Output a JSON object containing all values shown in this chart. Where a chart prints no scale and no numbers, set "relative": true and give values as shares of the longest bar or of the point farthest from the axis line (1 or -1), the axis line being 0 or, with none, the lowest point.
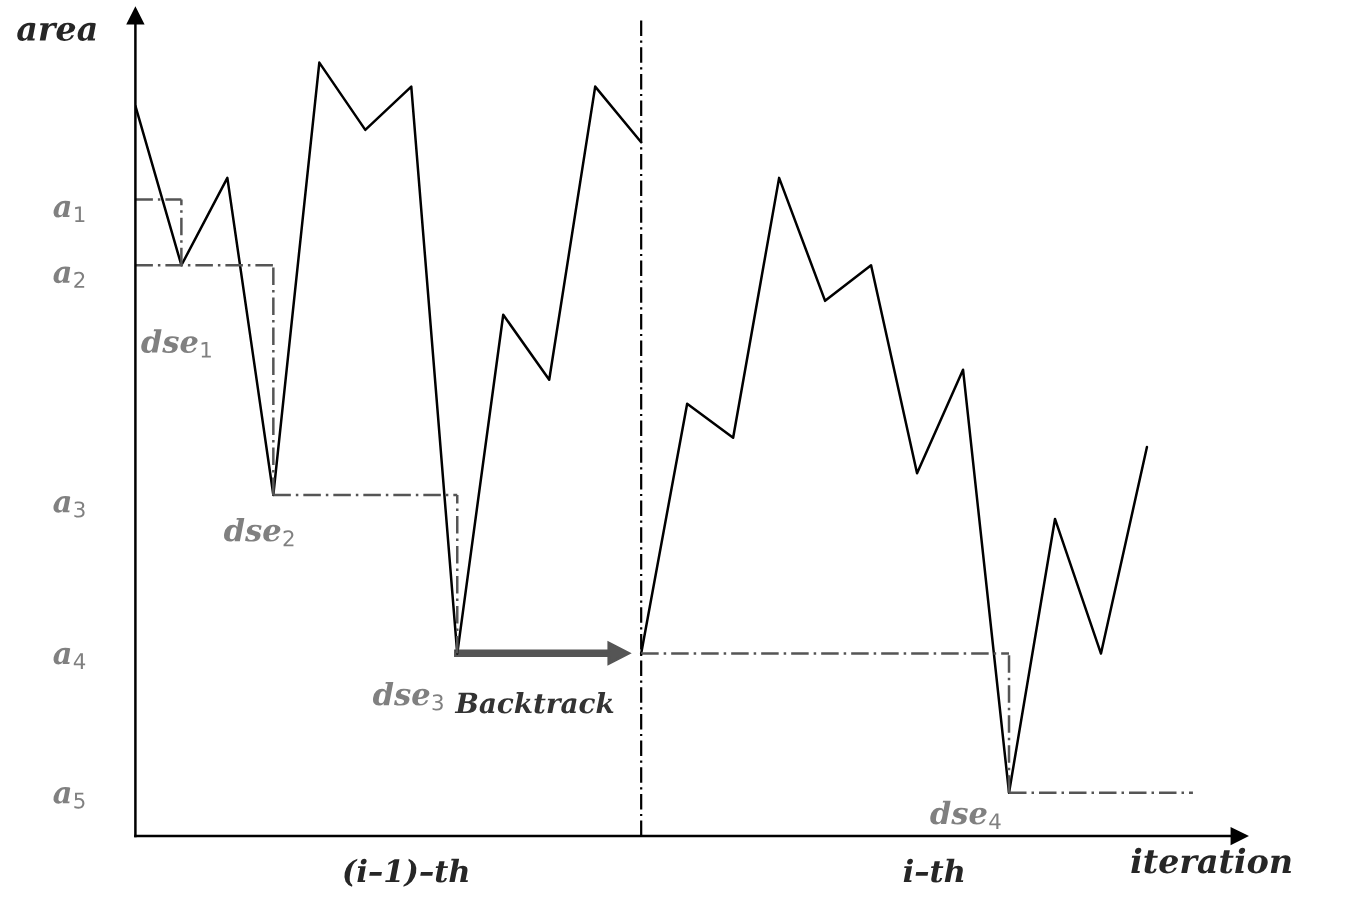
{
  "chart_data": {
    "type": "line",
    "relative": true,
    "xlabel": "iteration",
    "ylabel": "area",
    "categories": [
      null,
      null,
      null,
      null,
      null,
      null,
      null,
      null,
      null,
      null,
      null,
      null,
      null,
      null,
      null,
      null,
      null,
      null,
      null,
      null,
      null,
      null,
      null,
      null,
      null
    ],
    "series": [
      {
        "color": "#000000",
        "values": [
          0.944,
          0.738,
          0.851,
          0.441,
          1,
          0.913,
          0.969,
          0.236,
          0.674,
          0.59,
          0.969,
          0.897,
          null,
          null,
          null,
          null,
          null,
          null,
          null,
          null,
          null,
          null,
          null,
          null,
          null
        ]
      },
      {
        "color": "#000000",
        "values": [
          null,
          null,
          null,
          null,
          null,
          null,
          null,
          null,
          null,
          null,
          null,
          0.236,
          0.559,
          0.515,
          0.851,
          0.692,
          0.738,
          0.469,
          0.603,
          0.056,
          0.41,
          0.236,
          0.503,
          null,
          null
        ]
      },
      {
        "type": "step",
        "color": "#555555",
        "line_style": "dashed",
        "values": [
          0.823,
          0.823,
          null,
          null,
          null,
          null,
          null,
          null,
          null,
          null,
          null,
          null,
          null,
          null,
          null,
          null,
          null,
          null,
          null,
          null,
          null,
          null,
          null,
          null,
          null
        ]
      },
      {
        "type": "step",
        "color": "#555555",
        "line_style": "dashed",
        "values": [
          0.738,
          0.738,
          0.738,
          0.738,
          null,
          null,
          null,
          null,
          null,
          null,
          null,
          null,
          null,
          null,
          null,
          null,
          null,
          null,
          null,
          null,
          null,
          null,
          null,
          null,
          null
        ]
      },
      {
        "type": "step",
        "color": "#555555",
        "line_style": "dashed",
        "values": [
          null,
          null,
          null,
          0.441,
          0.441,
          0.441,
          0.441,
          0.441,
          null,
          null,
          null,
          null,
          null,
          null,
          null,
          null,
          null,
          null,
          null,
          null,
          null,
          null,
          null,
          null,
          null
        ]
      },
      {
        "type": "step",
        "color": "#555555",
        "line_style": "dashed",
        "values": [
          null,
          null,
          null,
          null,
          null,
          null,
          null,
          null,
          null,
          null,
          null,
          0.236,
          0.236,
          0.236,
          0.236,
          0.236,
          0.236,
          0.236,
          0.236,
          0.236,
          null,
          null,
          null,
          null,
          null
        ]
      },
      {
        "type": "step",
        "color": "#555555",
        "line_style": "dashed",
        "values": [
          null,
          null,
          null,
          null,
          null,
          null,
          null,
          null,
          null,
          null,
          null,
          null,
          null,
          null,
          null,
          null,
          null,
          null,
          null,
          0.056,
          0.056,
          0.056,
          0.056,
          0.056,
          null
        ]
      }
    ],
    "annotations": [
      "a$_{1}$",
      "a$_{2}$",
      "a$_{3}$",
      "a$_{4}$",
      "a$_{5}$",
      "dse$_{1}$",
      "dse$_{2}$",
      "dse$_{3}$",
      "dse$_{4}$",
      "Backtrack",
      "(i–1)–th",
      "i–th"
    ]
  }
}
